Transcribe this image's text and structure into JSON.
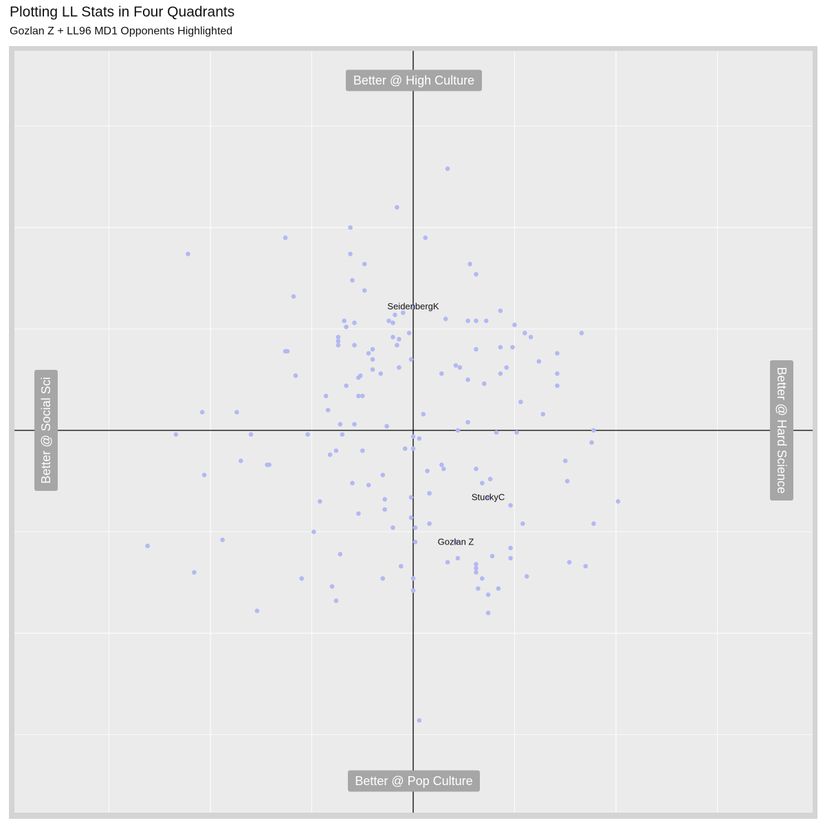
{
  "title": "Plotting LL Stats in Four Quadrants",
  "subtitle": "Gozlan Z + LL96 MD1 Opponents Highlighted",
  "colors": {
    "panel_background": "#ebebeb",
    "panel_border": "#d4d4d4",
    "gridline": "#ffffff",
    "axis_line": "#000000",
    "point": "#b3b8f2",
    "quadrant_label_background": "#a6a6a6",
    "quadrant_label_text": "#ffffff"
  },
  "chart_data": {
    "type": "scatter",
    "title": "Plotting LL Stats in Four Quadrants",
    "subtitle": "Gozlan Z + LL96 MD1 Opponents Highlighted",
    "xlim": [
      -1.88,
      1.88
    ],
    "ylim": [
      -1.88,
      1.88
    ],
    "grid": true,
    "axis_lines_through_origin": true,
    "quadrant_labels": {
      "top": "Better @ High Culture",
      "bottom": "Better @ Pop Culture",
      "left": "Better @ Social Sci",
      "right": "Better @ Hard Science"
    },
    "highlighted": [
      {
        "label": "SeidenbergK",
        "x": 0.0,
        "y": 0.61
      },
      {
        "label": "StuckyC",
        "x": 0.37,
        "y": -0.33
      },
      {
        "label": "Gozlan Z",
        "x": 0.21,
        "y": -0.55
      }
    ],
    "points": [
      [
        0.17,
        1.29
      ],
      [
        -0.08,
        1.1
      ],
      [
        0.06,
        0.95
      ],
      [
        -0.31,
        1.0
      ],
      [
        -0.63,
        0.95
      ],
      [
        -1.11,
        0.87
      ],
      [
        -0.31,
        0.87
      ],
      [
        -0.24,
        0.82
      ],
      [
        0.28,
        0.82
      ],
      [
        0.31,
        0.77
      ],
      [
        -0.3,
        0.74
      ],
      [
        -0.59,
        0.66
      ],
      [
        -0.24,
        0.69
      ],
      [
        0.0,
        0.61
      ],
      [
        0.43,
        0.59
      ],
      [
        -0.05,
        0.58
      ],
      [
        -0.09,
        0.57
      ],
      [
        -0.34,
        0.54
      ],
      [
        0.16,
        0.55
      ],
      [
        0.27,
        0.54
      ],
      [
        0.31,
        0.54
      ],
      [
        0.36,
        0.54
      ],
      [
        -0.12,
        0.54
      ],
      [
        -0.1,
        0.53
      ],
      [
        -0.29,
        0.53
      ],
      [
        0.5,
        0.52
      ],
      [
        -0.33,
        0.51
      ],
      [
        -0.02,
        0.48
      ],
      [
        0.55,
        0.48
      ],
      [
        0.83,
        0.48
      ],
      [
        -0.37,
        0.46
      ],
      [
        0.58,
        0.46
      ],
      [
        -0.1,
        0.46
      ],
      [
        -0.07,
        0.45
      ],
      [
        -0.37,
        0.44
      ],
      [
        -0.08,
        0.42
      ],
      [
        0.49,
        0.41
      ],
      [
        -0.37,
        0.42
      ],
      [
        -0.29,
        0.42
      ],
      [
        0.43,
        0.41
      ],
      [
        -0.2,
        0.4
      ],
      [
        0.31,
        0.4
      ],
      [
        -0.63,
        0.39
      ],
      [
        -0.62,
        0.39
      ],
      [
        -0.22,
        0.38
      ],
      [
        0.71,
        0.38
      ],
      [
        -0.2,
        0.35
      ],
      [
        -0.01,
        0.35
      ],
      [
        0.62,
        0.34
      ],
      [
        0.21,
        0.32
      ],
      [
        0.23,
        0.31
      ],
      [
        0.46,
        0.31
      ],
      [
        -0.2,
        0.3
      ],
      [
        -0.07,
        0.31
      ],
      [
        -0.58,
        0.27
      ],
      [
        -0.16,
        0.28
      ],
      [
        0.14,
        0.28
      ],
      [
        0.43,
        0.28
      ],
      [
        -0.26,
        0.27
      ],
      [
        0.71,
        0.28
      ],
      [
        -0.27,
        0.26
      ],
      [
        0.27,
        0.25
      ],
      [
        0.35,
        0.23
      ],
      [
        -0.33,
        0.22
      ],
      [
        0.71,
        0.22
      ],
      [
        -0.43,
        0.17
      ],
      [
        -0.27,
        0.17
      ],
      [
        -0.25,
        0.17
      ],
      [
        0.53,
        0.14
      ],
      [
        -0.42,
        0.1
      ],
      [
        -1.04,
        0.09
      ],
      [
        -0.87,
        0.09
      ],
      [
        0.05,
        0.08
      ],
      [
        0.64,
        0.08
      ],
      [
        0.27,
        0.04
      ],
      [
        -0.36,
        0.03
      ],
      [
        -0.29,
        0.03
      ],
      [
        -0.13,
        0.02
      ],
      [
        0.22,
        0.0
      ],
      [
        0.89,
        0.0
      ],
      [
        0.41,
        -0.01
      ],
      [
        0.51,
        -0.01
      ],
      [
        -1.17,
        -0.02
      ],
      [
        -0.8,
        -0.02
      ],
      [
        -0.52,
        -0.02
      ],
      [
        -0.35,
        -0.02
      ],
      [
        0.0,
        -0.03
      ],
      [
        0.03,
        -0.04
      ],
      [
        0.88,
        -0.06
      ],
      [
        -0.38,
        -0.1
      ],
      [
        -0.25,
        -0.1
      ],
      [
        -0.04,
        -0.09
      ],
      [
        0.0,
        -0.09
      ],
      [
        -0.41,
        -0.12
      ],
      [
        -0.85,
        -0.15
      ],
      [
        0.75,
        -0.15
      ],
      [
        0.14,
        -0.17
      ],
      [
        -0.71,
        -0.17
      ],
      [
        -0.72,
        -0.17
      ],
      [
        0.15,
        -0.19
      ],
      [
        0.07,
        -0.2
      ],
      [
        0.31,
        -0.19
      ],
      [
        -1.03,
        -0.22
      ],
      [
        -0.15,
        -0.22
      ],
      [
        0.38,
        -0.24
      ],
      [
        0.76,
        -0.25
      ],
      [
        0.34,
        -0.26
      ],
      [
        -0.3,
        -0.26
      ],
      [
        -0.22,
        -0.27
      ],
      [
        0.08,
        -0.31
      ],
      [
        -0.01,
        -0.33
      ],
      [
        -0.14,
        -0.34
      ],
      [
        -0.46,
        -0.35
      ],
      [
        1.01,
        -0.35
      ],
      [
        0.48,
        -0.37
      ],
      [
        -0.14,
        -0.39
      ],
      [
        -0.27,
        -0.41
      ],
      [
        -0.01,
        -0.43
      ],
      [
        0.08,
        -0.46
      ],
      [
        0.54,
        -0.46
      ],
      [
        0.89,
        -0.46
      ],
      [
        -0.1,
        -0.48
      ],
      [
        0.01,
        -0.48
      ],
      [
        -0.49,
        -0.5
      ],
      [
        -0.94,
        -0.54
      ],
      [
        0.21,
        -0.55
      ],
      [
        0.48,
        -0.58
      ],
      [
        0.01,
        -0.55
      ],
      [
        -1.31,
        -0.57
      ],
      [
        0.48,
        -0.63
      ],
      [
        0.39,
        -0.62
      ],
      [
        0.22,
        -0.63
      ],
      [
        0.31,
        -0.66
      ],
      [
        0.77,
        -0.65
      ],
      [
        0.17,
        -0.65
      ],
      [
        -0.36,
        -0.61
      ],
      [
        0.31,
        -0.68
      ],
      [
        0.85,
        -0.67
      ],
      [
        -0.06,
        -0.67
      ],
      [
        0.31,
        -0.7
      ],
      [
        -1.08,
        -0.7
      ],
      [
        0.56,
        -0.72
      ],
      [
        -0.15,
        -0.73
      ],
      [
        0.34,
        -0.73
      ],
      [
        0.0,
        -0.73
      ],
      [
        -0.55,
        -0.73
      ],
      [
        -0.4,
        -0.77
      ],
      [
        0.32,
        -0.78
      ],
      [
        0.42,
        -0.78
      ],
      [
        0.37,
        -0.81
      ],
      [
        0.0,
        -0.79
      ],
      [
        -0.38,
        -0.84
      ],
      [
        -0.77,
        -0.89
      ],
      [
        0.37,
        -0.9
      ],
      [
        0.03,
        -1.43
      ]
    ]
  }
}
